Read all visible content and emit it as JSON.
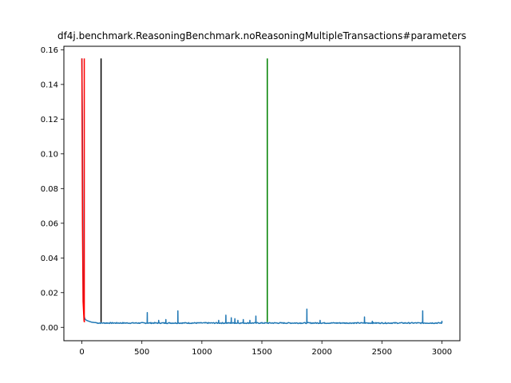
{
  "chart_data": {
    "type": "line",
    "title": "df4j.benchmark.ReasoningBenchmark.noReasoningMultipleTransactions#parameters",
    "xlabel": "",
    "ylabel": "",
    "xlim": [
      -150,
      3150
    ],
    "ylim": [
      -0.0077,
      0.162
    ],
    "x_ticks": [
      0,
      500,
      1000,
      1500,
      2000,
      2500,
      3000
    ],
    "x_tick_labels": [
      "0",
      "500",
      "1000",
      "1500",
      "2000",
      "2500",
      "3000"
    ],
    "y_ticks": [
      0.0,
      0.02,
      0.04,
      0.06,
      0.08,
      0.1,
      0.12,
      0.14,
      0.16
    ],
    "y_tick_labels": [
      "0.00",
      "0.02",
      "0.04",
      "0.06",
      "0.08",
      "0.10",
      "0.12",
      "0.14",
      "0.16"
    ],
    "grid": false,
    "legend": false,
    "series": [
      {
        "color": "#1f77b4",
        "style": "line",
        "baseline": 0.0025,
        "x_range": [
          0,
          3000
        ],
        "points": [
          [
            0,
            0.155
          ],
          [
            4,
            0.12
          ],
          [
            8,
            0.06
          ],
          [
            12,
            0.02
          ],
          [
            16,
            0.008
          ],
          [
            20,
            0.006
          ],
          [
            25,
            0.005
          ],
          [
            30,
            0.0045
          ],
          [
            40,
            0.004
          ],
          [
            60,
            0.0035
          ],
          [
            80,
            0.003
          ],
          [
            100,
            0.0028
          ],
          [
            120,
            0.0027
          ],
          [
            3000,
            0.0027
          ]
        ],
        "spikes": [
          [
            50,
            0.0045
          ],
          [
            110,
            0.004
          ],
          [
            545,
            0.0085
          ],
          [
            640,
            0.004
          ],
          [
            700,
            0.0045
          ],
          [
            800,
            0.0095
          ],
          [
            1140,
            0.004
          ],
          [
            1200,
            0.007
          ],
          [
            1245,
            0.0055
          ],
          [
            1275,
            0.005
          ],
          [
            1300,
            0.004
          ],
          [
            1345,
            0.0045
          ],
          [
            1400,
            0.004
          ],
          [
            1450,
            0.0065
          ],
          [
            1875,
            0.0105
          ],
          [
            1985,
            0.004
          ],
          [
            2355,
            0.006
          ],
          [
            2420,
            0.0035
          ],
          [
            2840,
            0.0095
          ],
          [
            3000,
            0.0035
          ]
        ]
      },
      {
        "color": "#ff0000",
        "style": "line",
        "points": [
          [
            0,
            0.155
          ],
          [
            5,
            0.06
          ],
          [
            10,
            0.015
          ],
          [
            18,
            0.004
          ],
          [
            22,
            0.003
          ]
        ]
      }
    ],
    "vertical_lines": [
      {
        "x": 20,
        "ymin": 0.003,
        "ymax": 0.155,
        "color": "#ff0000"
      },
      {
        "x": 160,
        "ymin": 0.003,
        "ymax": 0.155,
        "color": "#000000"
      },
      {
        "x": 1545,
        "ymin": 0.003,
        "ymax": 0.155,
        "color": "#008000"
      }
    ]
  }
}
